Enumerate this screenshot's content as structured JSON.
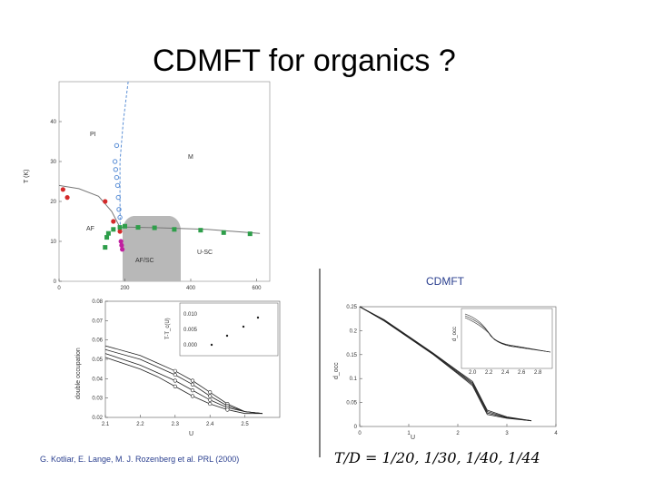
{
  "slide": {
    "title": "CDMFT for organics ?",
    "credit": "G. Kotliar, E. Lange, M. J. Rozenberg et al. PRL (2000)",
    "formula": "T/D = 1/20, 1/30, 1/40, 1/44"
  },
  "chart_data": [
    {
      "type": "scatter",
      "xlabel": "",
      "ylabel": "T (K)",
      "xlim": [
        0,
        640
      ],
      "ylim": [
        0,
        50
      ],
      "xticks": [
        "0",
        "200",
        "400",
        "600"
      ],
      "yticks": [
        "0",
        "10",
        "20",
        "30",
        "40"
      ],
      "regions": [
        "PI",
        "M",
        "AF",
        "U-SC",
        "AF/SC"
      ],
      "series": [
        {
          "color": "#d42a2a",
          "points": [
            [
              12,
              23
            ],
            [
              25,
              21
            ],
            [
              140,
              20
            ],
            [
              165,
              15
            ],
            [
              185,
              12.5
            ]
          ]
        },
        {
          "color": "#5b8fd6",
          "points": [
            [
              175,
              34
            ],
            [
              170,
              30
            ],
            [
              172,
              28
            ],
            [
              175,
              26
            ],
            [
              178,
              24
            ],
            [
              180,
              21
            ],
            [
              182,
              18
            ],
            [
              185,
              16
            ]
          ]
        },
        {
          "color": "#2e9e4a",
          "points": [
            [
              140,
              8.5
            ],
            [
              145,
              11
            ],
            [
              150,
              12
            ],
            [
              165,
              13
            ],
            [
              185,
              13.5
            ],
            [
              200,
              13.8
            ],
            [
              240,
              13.5
            ],
            [
              290,
              13.4
            ],
            [
              350,
              13
            ],
            [
              430,
              12.8
            ],
            [
              500,
              12.2
            ],
            [
              580,
              11.9
            ]
          ]
        },
        {
          "color": "#c020a0",
          "points": [
            [
              188,
              10
            ],
            [
              190,
              9
            ],
            [
              192,
              8
            ]
          ]
        }
      ],
      "lines": [
        {
          "color": "#777777",
          "points": [
            [
              0,
              24
            ],
            [
              60,
              23.2
            ],
            [
              120,
              21.3
            ],
            [
              160,
              17.5
            ],
            [
              185,
              13.5
            ],
            [
              200,
              13.6
            ],
            [
              300,
              13.4
            ],
            [
              450,
              13
            ],
            [
              610,
              12
            ]
          ]
        },
        {
          "color": "#5b8fd6",
          "style": "dashed",
          "points": [
            [
              210,
              50
            ],
            [
              195,
              40
            ],
            [
              185,
              30
            ],
            [
              185,
              20
            ],
            [
              186,
              13
            ]
          ]
        }
      ],
      "shaded_region": {
        "label": "AF/SC",
        "color": "#b8b8b8"
      }
    },
    {
      "type": "line",
      "xlabel": "U",
      "ylabel": "double occupation",
      "xlim": [
        2.1,
        2.6
      ],
      "ylim": [
        0.02,
        0.08
      ],
      "xticks": [
        "2.1",
        "2.2",
        "2.3",
        "2.4",
        "2.5"
      ],
      "yticks": [
        "0.02",
        "0.03",
        "0.04",
        "0.05",
        "0.06",
        "0.07",
        "0.08"
      ],
      "series": [
        {
          "x": [
            2.1,
            2.2,
            2.25,
            2.3,
            2.35,
            2.4,
            2.45,
            2.5,
            2.55
          ],
          "y": [
            0.057,
            0.052,
            0.048,
            0.044,
            0.039,
            0.033,
            0.027,
            0.023,
            0.022
          ]
        },
        {
          "x": [
            2.1,
            2.2,
            2.25,
            2.3,
            2.35,
            2.4,
            2.45,
            2.5,
            2.55
          ],
          "y": [
            0.055,
            0.05,
            0.046,
            0.042,
            0.037,
            0.031,
            0.026,
            0.023,
            0.022
          ]
        },
        {
          "x": [
            2.1,
            2.2,
            2.25,
            2.3,
            2.35,
            2.4,
            2.45,
            2.5,
            2.55
          ],
          "y": [
            0.053,
            0.047,
            0.043,
            0.039,
            0.034,
            0.029,
            0.025,
            0.023,
            0.022
          ]
        },
        {
          "x": [
            2.1,
            2.2,
            2.25,
            2.3,
            2.35,
            2.4,
            2.45,
            2.5,
            2.55
          ],
          "y": [
            0.051,
            0.045,
            0.041,
            0.036,
            0.031,
            0.027,
            0.024,
            0.022,
            0.022
          ]
        }
      ],
      "inset": {
        "yticks": [
          "0.010",
          "0.005",
          "0.000"
        ],
        "ylabel": "T-T_c(U)"
      }
    },
    {
      "type": "line",
      "title": "CDMFT",
      "xlabel": "U",
      "ylabel": "d_occ",
      "xlim": [
        0,
        4
      ],
      "ylim": [
        0,
        0.25
      ],
      "xticks": [
        "0",
        "1",
        "2",
        "3",
        "4"
      ],
      "yticks": [
        "0",
        "0.05",
        "0.1",
        "0.15",
        "0.2",
        "0.25"
      ],
      "series": [
        {
          "x": [
            0,
            0.5,
            1,
            1.5,
            2,
            2.3,
            2.6,
            3,
            3.5
          ],
          "y": [
            0.25,
            0.22,
            0.185,
            0.15,
            0.11,
            0.085,
            0.025,
            0.017,
            0.012
          ]
        },
        {
          "x": [
            0,
            0.5,
            1,
            1.5,
            2,
            2.3,
            2.6,
            3,
            3.5
          ],
          "y": [
            0.25,
            0.221,
            0.186,
            0.151,
            0.112,
            0.088,
            0.028,
            0.018,
            0.012
          ]
        },
        {
          "x": [
            0,
            0.5,
            1,
            1.5,
            2,
            2.3,
            2.6,
            3,
            3.5
          ],
          "y": [
            0.25,
            0.222,
            0.187,
            0.152,
            0.114,
            0.091,
            0.031,
            0.019,
            0.012
          ]
        },
        {
          "x": [
            0,
            0.5,
            1,
            1.5,
            2,
            2.3,
            2.6,
            3,
            3.5
          ],
          "y": [
            0.25,
            0.223,
            0.188,
            0.153,
            0.116,
            0.094,
            0.034,
            0.02,
            0.012
          ]
        }
      ],
      "inset": {
        "xticks": [
          "2.0",
          "2.2",
          "2.4",
          "2.6",
          "2.8"
        ],
        "ylabel": "d_occ"
      }
    }
  ]
}
